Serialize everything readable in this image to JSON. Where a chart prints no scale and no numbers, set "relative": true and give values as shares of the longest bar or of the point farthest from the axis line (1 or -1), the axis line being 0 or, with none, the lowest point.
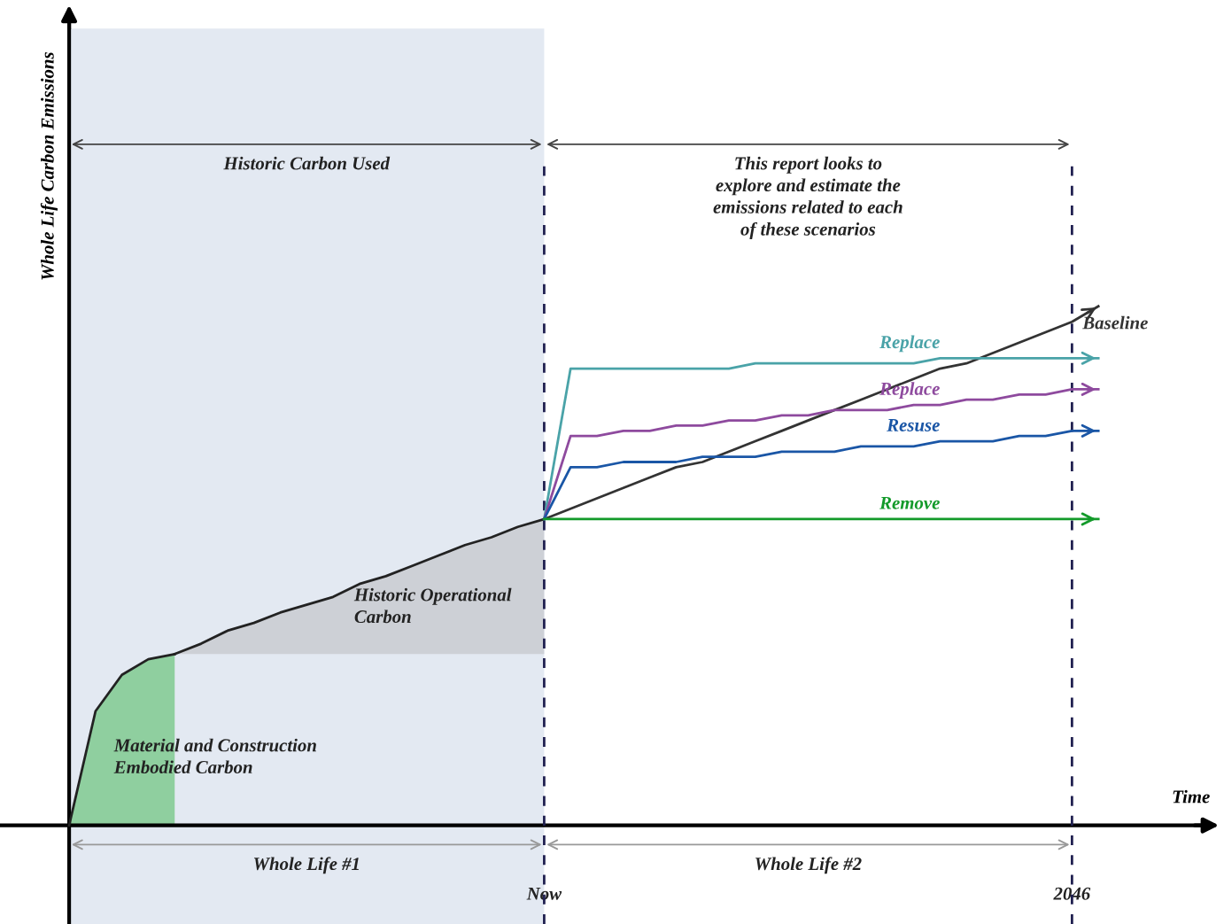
{
  "chart_data": {
    "type": "line",
    "relative": true,
    "xlabel": "Time",
    "ylabel": "Whole Life Carbon Emissions",
    "categories": [
      null,
      null,
      null,
      null,
      null,
      null,
      null,
      null,
      null,
      null,
      null,
      null,
      null,
      null,
      null,
      null,
      null,
      null,
      "Now",
      null,
      null,
      null,
      null,
      null,
      null,
      null,
      null,
      null,
      null,
      null,
      null,
      null,
      null,
      null,
      null,
      null,
      null,
      null,
      "2046",
      null
    ],
    "series": [
      {
        "type": "area",
        "color": "#8fcf9f",
        "values": [
          0,
          0.22,
          0.29,
          0.32,
          0.33,
          null,
          null,
          null,
          null,
          null,
          null,
          null,
          null,
          null,
          null,
          null,
          null,
          null,
          null,
          null,
          null,
          null,
          null,
          null,
          null,
          null,
          null,
          null,
          null,
          null,
          null,
          null,
          null,
          null,
          null,
          null,
          null,
          null,
          null,
          null
        ]
      },
      {
        "type": "area",
        "color": "#cdd0d6",
        "values": [
          null,
          null,
          null,
          null,
          0.33,
          0.35,
          0.375,
          0.39,
          0.41,
          0.425,
          0.44,
          0.465,
          0.48,
          0.5,
          0.52,
          0.54,
          0.555,
          0.575,
          0.59,
          null,
          null,
          null,
          null,
          null,
          null,
          null,
          null,
          null,
          null,
          null,
          null,
          null,
          null,
          null,
          null,
          null,
          null,
          null,
          null,
          null
        ]
      },
      {
        "name": "Baseline",
        "color": "#333333",
        "values": [
          null,
          null,
          null,
          null,
          null,
          null,
          null,
          null,
          null,
          null,
          null,
          null,
          null,
          null,
          null,
          null,
          null,
          null,
          0.59,
          0.61,
          0.63,
          0.65,
          0.67,
          0.69,
          0.7,
          0.72,
          0.74,
          0.76,
          0.78,
          0.8,
          0.82,
          0.84,
          0.86,
          0.88,
          0.89,
          0.91,
          0.93,
          0.95,
          0.97,
          1.0
        ]
      },
      {
        "name": "Replace",
        "color": "#4aa3a8",
        "values": [
          null,
          null,
          null,
          null,
          null,
          null,
          null,
          null,
          null,
          null,
          null,
          null,
          null,
          null,
          null,
          null,
          null,
          null,
          0.59,
          0.88,
          0.88,
          0.88,
          0.88,
          0.88,
          0.88,
          0.88,
          0.89,
          0.89,
          0.89,
          0.89,
          0.89,
          0.89,
          0.89,
          0.9,
          0.9,
          0.9,
          0.9,
          0.9,
          0.9,
          0.9
        ]
      },
      {
        "name": "Replace",
        "color": "#8e4a9e",
        "values": [
          null,
          null,
          null,
          null,
          null,
          null,
          null,
          null,
          null,
          null,
          null,
          null,
          null,
          null,
          null,
          null,
          null,
          null,
          0.59,
          0.75,
          0.75,
          0.76,
          0.76,
          0.77,
          0.77,
          0.78,
          0.78,
          0.79,
          0.79,
          0.8,
          0.8,
          0.8,
          0.81,
          0.81,
          0.82,
          0.82,
          0.83,
          0.83,
          0.84,
          0.84
        ]
      },
      {
        "name": "Resuse",
        "color": "#1a56a6",
        "values": [
          null,
          null,
          null,
          null,
          null,
          null,
          null,
          null,
          null,
          null,
          null,
          null,
          null,
          null,
          null,
          null,
          null,
          null,
          0.59,
          0.69,
          0.69,
          0.7,
          0.7,
          0.7,
          0.71,
          0.71,
          0.71,
          0.72,
          0.72,
          0.72,
          0.73,
          0.73,
          0.73,
          0.74,
          0.74,
          0.74,
          0.75,
          0.75,
          0.76,
          0.76
        ]
      },
      {
        "name": "Remove",
        "color": "#139a2a",
        "values": [
          null,
          null,
          null,
          null,
          null,
          null,
          null,
          null,
          null,
          null,
          null,
          null,
          null,
          null,
          null,
          null,
          null,
          null,
          0.59,
          0.59,
          0.59,
          0.59,
          0.59,
          0.59,
          0.59,
          0.59,
          0.59,
          0.59,
          0.59,
          0.59,
          0.59,
          0.59,
          0.59,
          0.59,
          0.59,
          0.59,
          0.59,
          0.59,
          0.59,
          0.59
        ]
      }
    ],
    "ref_lines": [
      {
        "axis": "x",
        "value": "Now",
        "color": "#202050",
        "line_style": "dashed"
      },
      {
        "axis": "x",
        "value": "2046",
        "color": "#202050",
        "line_style": "dashed"
      }
    ],
    "annotations": [
      "Historic Carbon Used",
      "This report looks to\nexplore and estimate the\nemissions related to each\nof these scenarios",
      "Whole Life #1",
      "Whole Life #2",
      "Historic Operational\nCarbon",
      "Material and Construction\nEmbodied Carbon"
    ]
  }
}
